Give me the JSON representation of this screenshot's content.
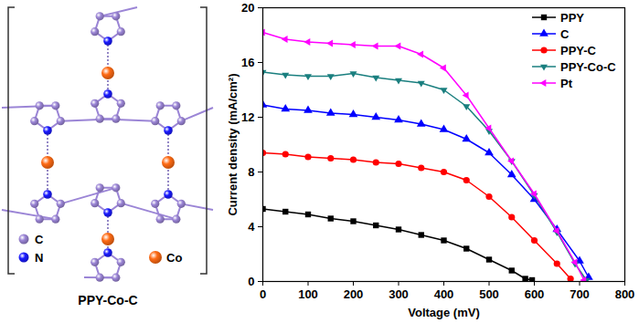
{
  "chart_data": {
    "type": "line",
    "x_label": "Voltage (mV)",
    "y_label": "Current density (mA/cm²)",
    "xlim": [
      0,
      800
    ],
    "ylim": [
      0,
      20
    ],
    "xticks": [
      0,
      100,
      200,
      300,
      400,
      500,
      600,
      700,
      800
    ],
    "yticks": [
      0,
      4,
      8,
      12,
      16,
      20
    ],
    "grid": false,
    "legend": "top-right",
    "series": [
      {
        "name": "PPY",
        "color": "#000000",
        "marker": "square",
        "x": [
          0,
          50,
          100,
          150,
          200,
          250,
          300,
          350,
          400,
          450,
          500,
          550,
          580,
          595
        ],
        "values": [
          5.3,
          5.1,
          4.9,
          4.6,
          4.4,
          4.1,
          3.8,
          3.4,
          3.0,
          2.4,
          1.6,
          0.8,
          0.2,
          0.1
        ]
      },
      {
        "name": "C",
        "color": "#0000ff",
        "marker": "triangle",
        "x": [
          0,
          50,
          100,
          150,
          200,
          250,
          300,
          350,
          400,
          450,
          500,
          550,
          600,
          650,
          700,
          720
        ],
        "values": [
          12.9,
          12.6,
          12.5,
          12.3,
          12.2,
          12.0,
          11.8,
          11.5,
          11.1,
          10.4,
          9.4,
          7.8,
          6.0,
          3.8,
          1.5,
          0.3
        ]
      },
      {
        "name": "PPY-C",
        "color": "#ff0000",
        "marker": "circle",
        "x": [
          0,
          50,
          100,
          150,
          200,
          250,
          300,
          350,
          400,
          450,
          500,
          550,
          600,
          650,
          680
        ],
        "values": [
          9.4,
          9.3,
          9.1,
          9.0,
          8.9,
          8.7,
          8.6,
          8.3,
          8.0,
          7.4,
          6.2,
          4.7,
          3.0,
          1.3,
          0.2
        ]
      },
      {
        "name": "PPY-Co-C",
        "color": "#1a7f7f",
        "marker": "triangle-down",
        "x": [
          0,
          50,
          100,
          150,
          200,
          250,
          300,
          350,
          400,
          450,
          500,
          550,
          600,
          650,
          690,
          715
        ],
        "values": [
          15.3,
          15.1,
          15.0,
          15.0,
          15.2,
          14.9,
          14.7,
          14.5,
          14.0,
          12.8,
          11.0,
          8.8,
          6.3,
          3.6,
          1.3,
          0.1
        ]
      },
      {
        "name": "Pt",
        "color": "#ff00ff",
        "marker": "triangle-left",
        "x": [
          0,
          50,
          100,
          150,
          200,
          250,
          300,
          350,
          400,
          450,
          500,
          550,
          600,
          650,
          690,
          710
        ],
        "values": [
          18.2,
          17.7,
          17.5,
          17.4,
          17.3,
          17.2,
          17.2,
          16.6,
          15.6,
          13.6,
          11.2,
          8.8,
          6.4,
          3.7,
          1.4,
          0.1
        ]
      }
    ]
  },
  "diagram": {
    "title": "PPY-Co-C",
    "legend": [
      {
        "label": "C"
      },
      {
        "label": "N"
      },
      {
        "label": "Co"
      }
    ]
  }
}
